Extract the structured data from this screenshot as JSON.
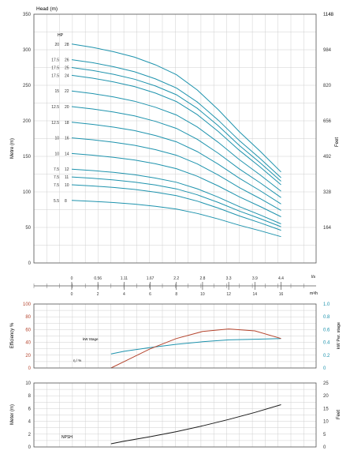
{
  "colors": {
    "curve": "#1e93ad",
    "efficiency": "#b5452e",
    "npsh": "#1a1a1a",
    "grid": "#cfcfcf",
    "axis": "#555555",
    "text": "#333333"
  },
  "chart_data": [
    {
      "id": "head",
      "type": "line",
      "title": "Head (m)",
      "ylabel_left": "Metre (m)",
      "ylabel_right": "Feet",
      "ylim": [
        0,
        350
      ],
      "xlim": [
        0,
        16
      ],
      "grid": true,
      "y_ticks": [
        "0",
        "50",
        "100",
        "150",
        "200",
        "250",
        "300",
        "350"
      ],
      "y2_ticks": [
        "164",
        "328",
        "492",
        "656",
        "820",
        "984",
        "1148"
      ],
      "y2_tick_values": [
        50,
        100,
        150,
        200,
        250,
        300,
        350
      ],
      "hp_header": "HP",
      "shutoff_flow": 3,
      "end_flow": 16,
      "series": [
        {
          "hp": "20",
          "stages": "28",
          "shutoff": 308,
          "end": 128
        },
        {
          "hp": "17.5",
          "stages": "26",
          "shutoff": 286,
          "end": 120
        },
        {
          "hp": "17.5",
          "stages": "25",
          "shutoff": 275,
          "end": 115
        },
        {
          "hp": "17.5",
          "stages": "24",
          "shutoff": 264,
          "end": 110
        },
        {
          "hp": "15",
          "stages": "22",
          "shutoff": 242,
          "end": 101
        },
        {
          "hp": "12.5",
          "stages": "20",
          "shutoff": 220,
          "end": 92
        },
        {
          "hp": "12.5",
          "stages": "18",
          "shutoff": 198,
          "end": 83
        },
        {
          "hp": "10",
          "stages": "16",
          "shutoff": 176,
          "end": 74
        },
        {
          "hp": "10",
          "stages": "14",
          "shutoff": 154,
          "end": 65
        },
        {
          "hp": "7.5",
          "stages": "12",
          "shutoff": 132,
          "end": 55
        },
        {
          "hp": "7.5",
          "stages": "11",
          "shutoff": 121,
          "end": 51
        },
        {
          "hp": "7.5",
          "stages": "10",
          "shutoff": 110,
          "end": 46
        },
        {
          "hp": "5.5",
          "stages": "8",
          "shutoff": 88,
          "end": 37
        }
      ]
    },
    {
      "id": "flow-scale",
      "type": "table",
      "units_top": "l/s",
      "units_bottom": "m³/h",
      "ls_ticks": [
        "0",
        "0.56",
        "1.11",
        "1.67",
        "2.2",
        "2.8",
        "3.3",
        "3.9",
        "4.4"
      ],
      "m3h_ticks": [
        "0",
        "2",
        "4",
        "6",
        "8",
        "10",
        "12",
        "14",
        "16"
      ]
    },
    {
      "id": "efficiency",
      "type": "line",
      "ylabel_left": "Efficiency %",
      "ylabel_right": "kW Per. stage",
      "ylim": [
        0,
        100
      ],
      "y_ticks": [
        "0",
        "20",
        "40",
        "60",
        "80",
        "100"
      ],
      "y2_ticks": [
        "0",
        "0.2",
        "0.4",
        "0.6",
        "0.8",
        "1.0"
      ],
      "series": [
        {
          "name": "kW Stage",
          "x": [
            3,
            4,
            6,
            8,
            10,
            12,
            14,
            16
          ],
          "y": [
            0.22,
            0.26,
            0.32,
            0.37,
            0.41,
            0.44,
            0.45,
            0.46
          ]
        },
        {
          "name": "η / %",
          "x": [
            3,
            4,
            6,
            8,
            10,
            12,
            14,
            16
          ],
          "y": [
            0,
            10,
            30,
            46,
            57,
            61,
            58,
            46
          ]
        }
      ]
    },
    {
      "id": "npsh",
      "type": "line",
      "ylabel_left": "Meter (m)",
      "ylabel_right": "Feet",
      "ylim": [
        0,
        10
      ],
      "y_ticks": [
        "0",
        "2",
        "4",
        "6",
        "8",
        "10"
      ],
      "y2_ticks": [
        "0",
        "5",
        "10",
        "15",
        "20"
      ],
      "y2_tick_values": [
        0,
        2,
        4,
        6,
        8
      ],
      "series": [
        {
          "name": "NPSH",
          "x": [
            3,
            4,
            6,
            8,
            10,
            12,
            14,
            16
          ],
          "y": [
            0.5,
            0.9,
            1.6,
            2.4,
            3.3,
            4.3,
            5.4,
            6.6
          ]
        }
      ]
    }
  ]
}
